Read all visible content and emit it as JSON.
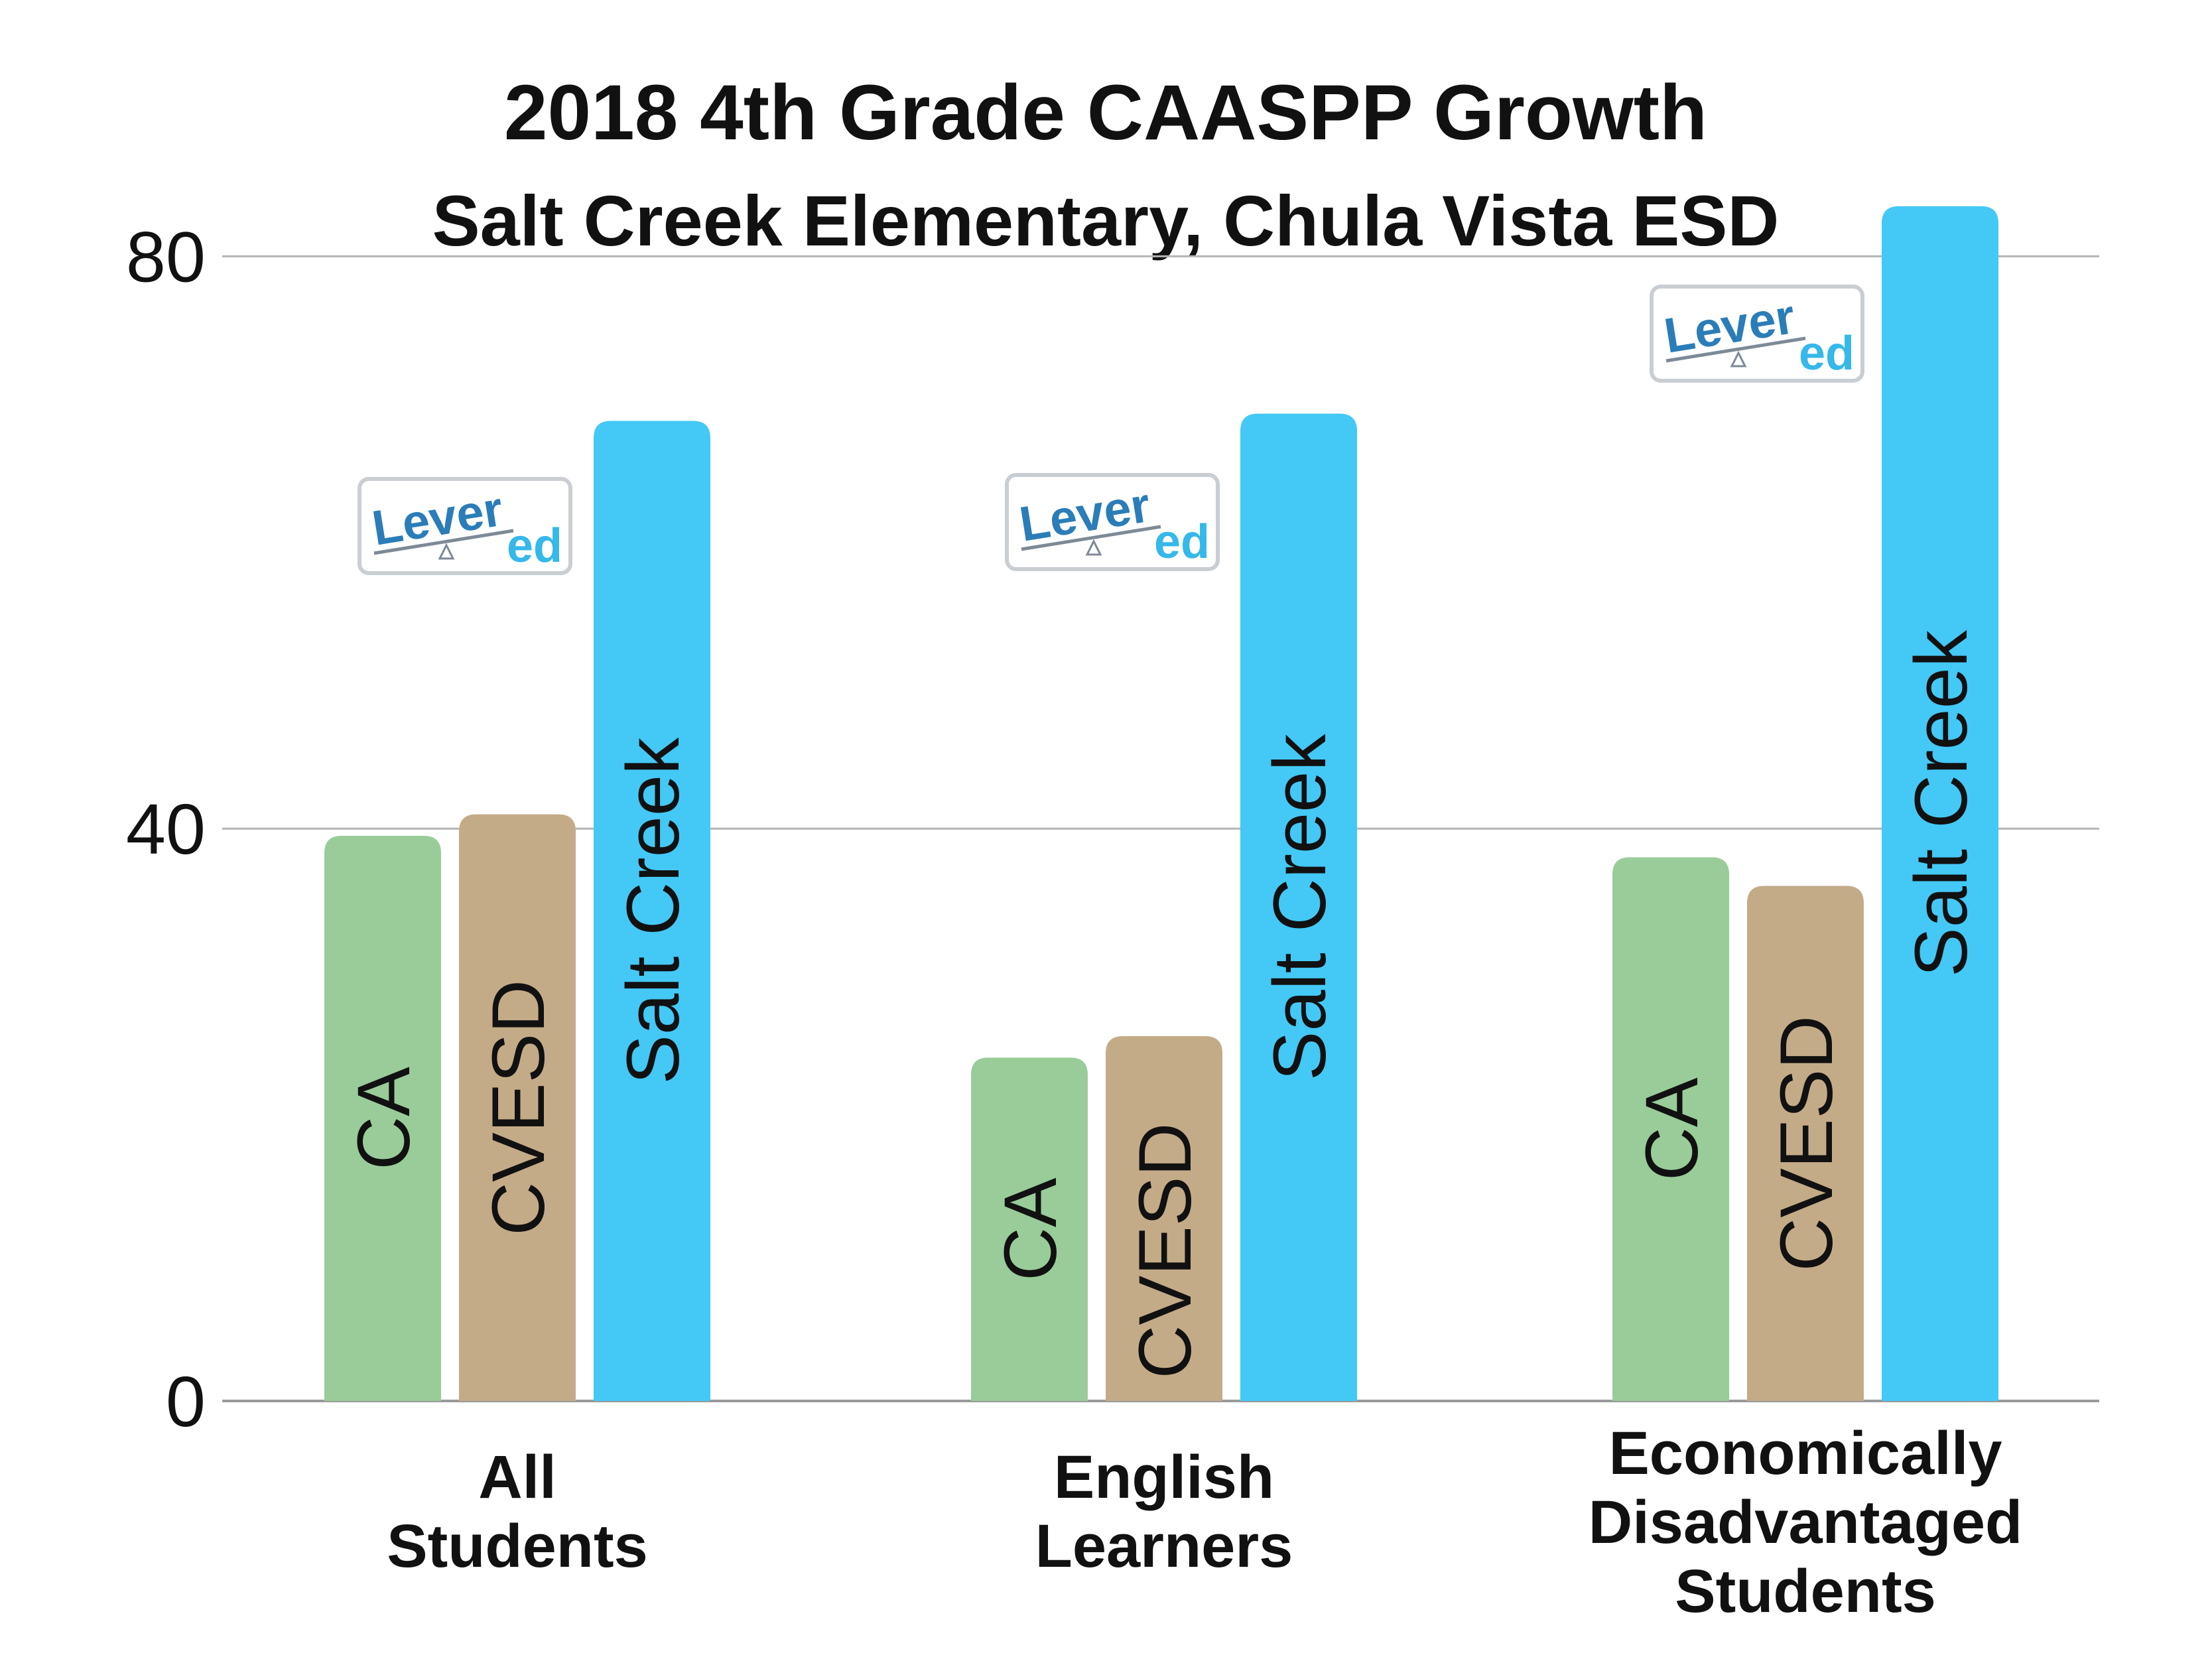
{
  "chart_data": {
    "type": "bar",
    "title": "2018 4th Grade CAASPP Growth",
    "subtitle": "Salt Creek Elementary, Chula Vista ESD",
    "categories": [
      [
        "All",
        "Students"
      ],
      [
        "English",
        "Learners"
      ],
      [
        "Economically",
        "Disadvantaged",
        "Students"
      ]
    ],
    "series": [
      {
        "name": "CA",
        "color": "#99cc99",
        "values": [
          39.5,
          24,
          38
        ]
      },
      {
        "name": "CVESD",
        "color": "#c4ab88",
        "values": [
          41,
          25.5,
          36
        ]
      },
      {
        "name": "Salt Creek",
        "color": "#44c8f5",
        "values": [
          68.5,
          69,
          83.5
        ]
      }
    ],
    "ylim": [
      0,
      86
    ],
    "yticks": [
      0,
      40,
      80
    ],
    "grid": true,
    "legend": "none",
    "bar_labels_inside": true
  },
  "logo": {
    "text_main": "Lever",
    "text_sub": "ed",
    "color_main": "#2a7db8",
    "color_sub": "#35b8ea"
  }
}
